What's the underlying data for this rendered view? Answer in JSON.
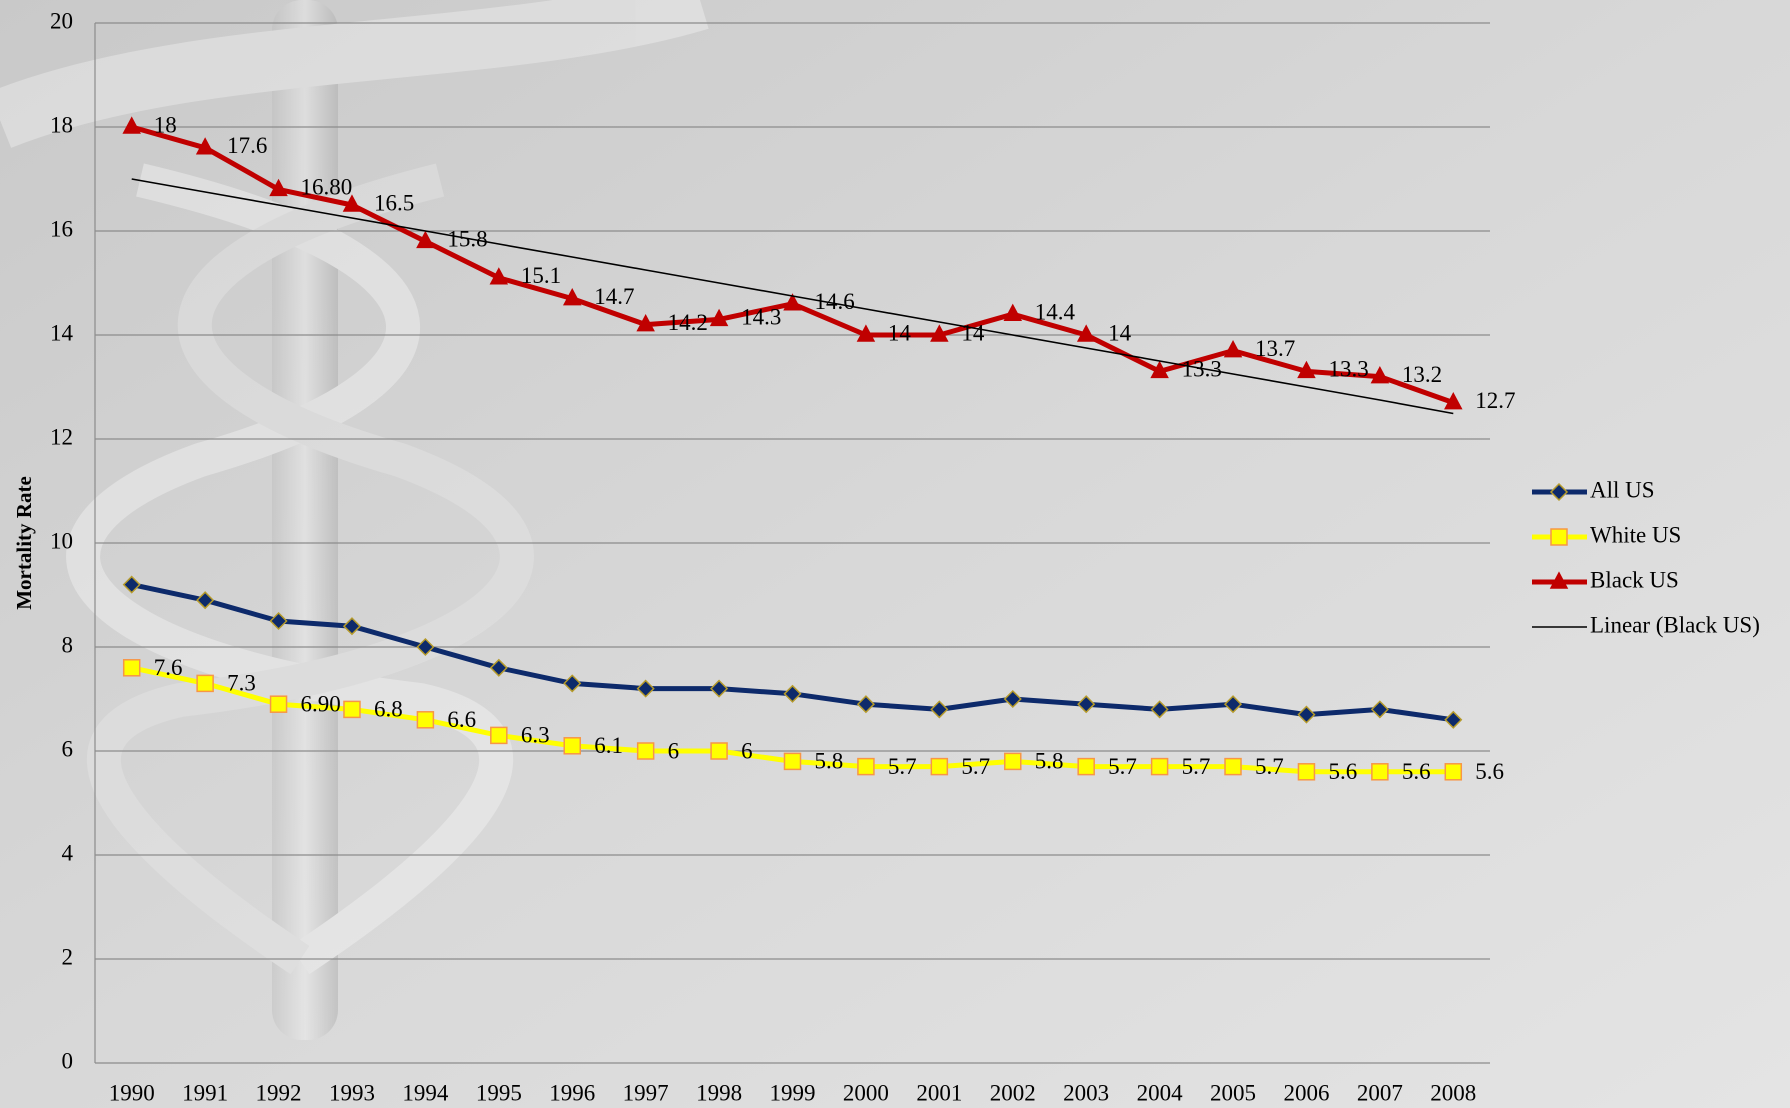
{
  "chart_data": {
    "type": "line",
    "y_label": "Mortality Rate",
    "categories": [
      "1990",
      "1991",
      "1992",
      "1993",
      "1994",
      "1995",
      "1996",
      "1997",
      "1998",
      "1999",
      "2000",
      "2001",
      "2002",
      "2003",
      "2004",
      "2005",
      "2006",
      "2007",
      "2008"
    ],
    "ylim": [
      0,
      20
    ],
    "yticks": [
      0,
      2,
      4,
      6,
      8,
      10,
      12,
      14,
      16,
      18,
      20
    ],
    "grid": true,
    "legend": "right",
    "series": [
      {
        "name": "All US",
        "color": "#0d2a6b",
        "marker": "diamond",
        "marker_fill": "#0d2a6b",
        "marker_edge": "#b59a2a",
        "values": [
          9.2,
          8.9,
          8.5,
          8.4,
          8.0,
          7.6,
          7.3,
          7.2,
          7.2,
          7.1,
          6.9,
          6.8,
          7.0,
          6.9,
          6.8,
          6.9,
          6.7,
          6.8,
          6.6
        ]
      },
      {
        "name": "White US",
        "color": "#ffff00",
        "marker": "square",
        "marker_fill": "#ffff00",
        "marker_edge": "#f79646",
        "values": [
          7.6,
          7.3,
          6.9,
          6.8,
          6.6,
          6.3,
          6.1,
          6,
          6,
          5.8,
          5.7,
          5.7,
          5.8,
          5.7,
          5.7,
          5.7,
          5.6,
          5.6,
          5.6
        ],
        "value_labels": [
          "7.6",
          "7.3",
          "6.90",
          "6.8",
          "6.6",
          "6.3",
          "6.1",
          "6",
          "6",
          "5.8",
          "5.7",
          "5.7",
          "5.8",
          "5.7",
          "5.7",
          "5.7",
          "5.6",
          "5.6",
          "5.6"
        ]
      },
      {
        "name": "Black US",
        "color": "#c00000",
        "marker": "triangle",
        "marker_fill": "#c00000",
        "marker_edge": "#c00000",
        "values": [
          18,
          17.6,
          16.8,
          16.5,
          15.8,
          15.1,
          14.7,
          14.2,
          14.3,
          14.6,
          14,
          14,
          14.4,
          14,
          13.3,
          13.7,
          13.3,
          13.2,
          12.7
        ],
        "value_labels": [
          "18",
          "17.6",
          "16.80",
          "16.5",
          "15.8",
          "15.1",
          "14.7",
          "14.2",
          "14.3",
          "14.6",
          "14",
          "14",
          "14.4",
          "14",
          "13.3",
          "13.7",
          "13.3",
          "13.2",
          "12.7"
        ]
      },
      {
        "name": "Linear (Black US)",
        "color": "#000000",
        "marker": "none",
        "values": [
          17.0,
          16.75,
          16.5,
          16.25,
          16.0,
          15.75,
          15.5,
          15.25,
          15.0,
          14.75,
          14.5,
          14.25,
          14.0,
          13.75,
          13.5,
          13.25,
          13.0,
          12.75,
          12.49
        ]
      }
    ]
  }
}
